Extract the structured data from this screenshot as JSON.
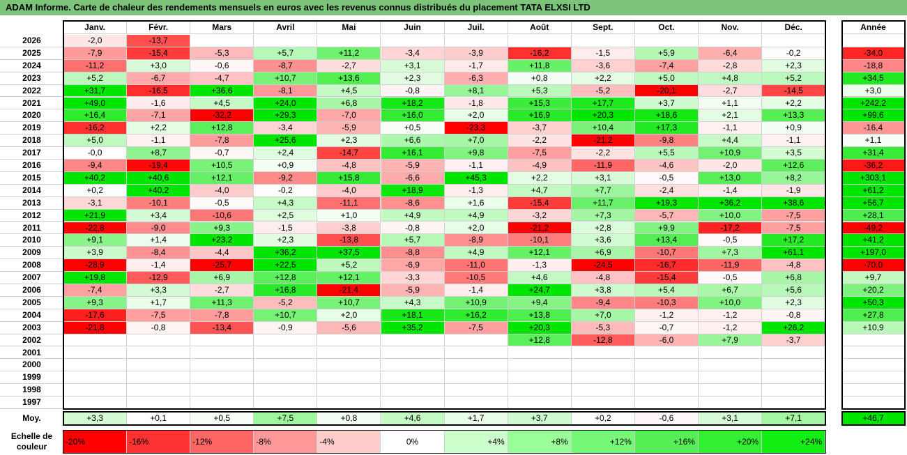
{
  "title": "ADAM Informe. Carte de chaleur des rendements mensuels en euros avec les revenus connus distribués du placement TATA ELXSI LTD",
  "chart_data": {
    "type": "heatmap",
    "columns": [
      "Janv.",
      "Févr.",
      "Mars",
      "Avril",
      "Mai",
      "Juin",
      "Juil.",
      "Août",
      "Sept.",
      "Oct.",
      "Nov.",
      "Déc."
    ],
    "annual_header": "Année",
    "rows": [
      {
        "year": "2026",
        "values": [
          "-2,0",
          "-13,7",
          "",
          "",
          "",
          "",
          "",
          "",
          "",
          "",
          "",
          ""
        ],
        "annual": ""
      },
      {
        "year": "2025",
        "values": [
          "-7,9",
          "-15,4",
          "-5,3",
          "+5,7",
          "+11,2",
          "-3,4",
          "-3,9",
          "-16,2",
          "-1,5",
          "+5,9",
          "-6,4",
          "-0,2"
        ],
        "annual": "-34,0"
      },
      {
        "year": "2024",
        "values": [
          "-11,2",
          "+3,0",
          "-0,6",
          "-8,7",
          "-2,7",
          "+3,1",
          "-1,7",
          "+11,8",
          "-3,6",
          "-7,4",
          "-2,8",
          "+2,3"
        ],
        "annual": "-18,8"
      },
      {
        "year": "2023",
        "values": [
          "+5,2",
          "-6,7",
          "-4,7",
          "+10,7",
          "+13,6",
          "+2,3",
          "-6,3",
          "+0,8",
          "+2,2",
          "+5,0",
          "+4,8",
          "+5,2"
        ],
        "annual": "+34,5"
      },
      {
        "year": "2022",
        "values": [
          "+31,7",
          "-16,5",
          "+36,6",
          "-8,1",
          "+4,5",
          "-0,8",
          "+8,1",
          "+5,3",
          "-5,2",
          "-20,1",
          "-2,7",
          "-14,5"
        ],
        "annual": "+3,0"
      },
      {
        "year": "2021",
        "values": [
          "+49,0",
          "-1,6",
          "+4,5",
          "+24,0",
          "+6,8",
          "+18,2",
          "-1,8",
          "+15,3",
          "+17,7",
          "+3,7",
          "+1,1",
          "+2,2"
        ],
        "annual": "+242,2"
      },
      {
        "year": "2020",
        "values": [
          "+16,4",
          "-7,1",
          "-32,2",
          "+29,3",
          "-7,0",
          "+16,0",
          "+2,0",
          "+16,9",
          "+20,3",
          "+18,6",
          "+2,1",
          "+13,3"
        ],
        "annual": "+99,6"
      },
      {
        "year": "2019",
        "values": [
          "-16,2",
          "+2,2",
          "+12,8",
          "-3,4",
          "-5,9",
          "+0,5",
          "-23,3",
          "-3,7",
          "+10,4",
          "+17,3",
          "-1,1",
          "+0,9"
        ],
        "annual": "-16,4"
      },
      {
        "year": "2018",
        "values": [
          "+5,0",
          "-1,1",
          "-7,8",
          "+25,6",
          "+2,3",
          "+6,6",
          "+7,0",
          "-2,2",
          "-21,2",
          "-9,8",
          "+4,4",
          "-1,1"
        ],
        "annual": "+1,1"
      },
      {
        "year": "2017",
        "values": [
          "-0,0",
          "+8,7",
          "-0,7",
          "+2,4",
          "-14,7",
          "+16,1",
          "+9,8",
          "-7,5",
          "-2,2",
          "+5,5",
          "+10,9",
          "+3,5"
        ],
        "annual": "+31,4"
      },
      {
        "year": "2016",
        "values": [
          "-9,4",
          "-19,4",
          "+10,5",
          "+0,9",
          "-4,8",
          "-5,9",
          "-1,1",
          "-4,9",
          "-11,9",
          "-4,6",
          "-2,0",
          "+12,6"
        ],
        "annual": "-36,2"
      },
      {
        "year": "2015",
        "values": [
          "+40,2",
          "+40,6",
          "+12,1",
          "-9,2",
          "+15,8",
          "-6,6",
          "+45,3",
          "+2,2",
          "+3,1",
          "-0,5",
          "+13,0",
          "+8,2"
        ],
        "annual": "+303,1"
      },
      {
        "year": "2014",
        "values": [
          "+0,2",
          "+40,2",
          "-4,0",
          "-0,2",
          "-4,0",
          "+18,9",
          "-1,3",
          "+4,7",
          "+7,7",
          "-2,4",
          "-1,4",
          "-1,9"
        ],
        "annual": "+61,2"
      },
      {
        "year": "2013",
        "values": [
          "-3,1",
          "-10,1",
          "-0,5",
          "+4,3",
          "-11,1",
          "-8,6",
          "+1,6",
          "-15,4",
          "+11,7",
          "+19,3",
          "+36,2",
          "+38,6"
        ],
        "annual": "+56,7"
      },
      {
        "year": "2012",
        "values": [
          "+21,9",
          "+3,4",
          "-10,6",
          "+2,5",
          "+1,0",
          "+4,9",
          "+4,9",
          "-3,2",
          "+7,3",
          "-5,7",
          "+10,0",
          "-7,5"
        ],
        "annual": "+28,1"
      },
      {
        "year": "2011",
        "values": [
          "-22,8",
          "-9,0",
          "+9,3",
          "-1,5",
          "-3,8",
          "-0,8",
          "+2,0",
          "-21,2",
          "+2,8",
          "+9,9",
          "-17,2",
          "-7,5"
        ],
        "annual": "-49,2"
      },
      {
        "year": "2010",
        "values": [
          "+9,1",
          "+1,4",
          "+23,2",
          "+2,3",
          "-13,8",
          "+5,7",
          "-8,9",
          "-10,1",
          "+3,6",
          "+13,4",
          "-0,5",
          "+17,2"
        ],
        "annual": "+41,2"
      },
      {
        "year": "2009",
        "values": [
          "+3,9",
          "-8,4",
          "-4,4",
          "+36,2",
          "+37,5",
          "-8,8",
          "+4,9",
          "+12,1",
          "+6,9",
          "-10,7",
          "+7,3",
          "+61,1"
        ],
        "annual": "+197,0"
      },
      {
        "year": "2008",
        "values": [
          "-28,9",
          "-1,4",
          "-25,7",
          "+22,5",
          "+5,2",
          "-6,9",
          "-11,0",
          "-1,3",
          "-24,5",
          "-16,7",
          "-11,9",
          "-4,8"
        ],
        "annual": "-70,0"
      },
      {
        "year": "2007",
        "values": [
          "+19,8",
          "-12,9",
          "+6,9",
          "+12,8",
          "+12,1",
          "-3,3",
          "-10,5",
          "+4,6",
          "-4,8",
          "-15,4",
          "-0,5",
          "+6,8"
        ],
        "annual": "+9,7"
      },
      {
        "year": "2006",
        "values": [
          "-7,4",
          "+3,3",
          "-2,7",
          "+16,8",
          "-21,4",
          "-5,9",
          "-1,4",
          "+24,7",
          "+3,8",
          "+5,4",
          "+6,7",
          "+5,6"
        ],
        "annual": "+20,2"
      },
      {
        "year": "2005",
        "values": [
          "+9,3",
          "+1,7",
          "+11,3",
          "-5,2",
          "+10,7",
          "+4,3",
          "+10,9",
          "+9,4",
          "-9,4",
          "-10,3",
          "+10,0",
          "+2,3"
        ],
        "annual": "+50,3"
      },
      {
        "year": "2004",
        "values": [
          "-17,6",
          "-7,5",
          "-7,8",
          "+10,7",
          "+2,0",
          "+18,1",
          "+16,2",
          "+13,8",
          "+7,0",
          "-1,2",
          "-1,2",
          "-0,8"
        ],
        "annual": "+27,8"
      },
      {
        "year": "2003",
        "values": [
          "-21,8",
          "-0,8",
          "-13,4",
          "-0,9",
          "-5,6",
          "+35,2",
          "-7,5",
          "+20,3",
          "-5,3",
          "-0,7",
          "-1,2",
          "+26,2"
        ],
        "annual": "+10,9"
      },
      {
        "year": "2002",
        "values": [
          "",
          "",
          "",
          "",
          "",
          "",
          "",
          "+12,8",
          "-12,8",
          "-6,0",
          "+7,9",
          "-3,7"
        ],
        "annual": ""
      },
      {
        "year": "2001",
        "values": [
          "",
          "",
          "",
          "",
          "",
          "",
          "",
          "",
          "",
          "",
          "",
          ""
        ],
        "annual": ""
      },
      {
        "year": "2000",
        "values": [
          "",
          "",
          "",
          "",
          "",
          "",
          "",
          "",
          "",
          "",
          "",
          ""
        ],
        "annual": ""
      },
      {
        "year": "1999",
        "values": [
          "",
          "",
          "",
          "",
          "",
          "",
          "",
          "",
          "",
          "",
          "",
          ""
        ],
        "annual": ""
      },
      {
        "year": "1998",
        "values": [
          "",
          "",
          "",
          "",
          "",
          "",
          "",
          "",
          "",
          "",
          "",
          ""
        ],
        "annual": ""
      },
      {
        "year": "1997",
        "values": [
          "",
          "",
          "",
          "",
          "",
          "",
          "",
          "",
          "",
          "",
          "",
          ""
        ],
        "annual": ""
      }
    ],
    "average": {
      "label": "Moy.",
      "values": [
        "+3,3",
        "+0,1",
        "+0,5",
        "+7,5",
        "+0,8",
        "+4,6",
        "+1,7",
        "+3,7",
        "+0,2",
        "-0,6",
        "+3,1",
        "+7,1"
      ],
      "annual": "+46,7"
    },
    "color_scale": {
      "label_line1": "Echelle de",
      "label_line2": "couleur",
      "stops": [
        {
          "label": "-20%",
          "value": -20,
          "color": "#ff0000"
        },
        {
          "label": "-16%",
          "value": -16,
          "color": "#ff3333"
        },
        {
          "label": "-12%",
          "value": -12,
          "color": "#ff6666"
        },
        {
          "label": "-8%",
          "value": -8,
          "color": "#ff9999"
        },
        {
          "label": "-4%",
          "value": -4,
          "color": "#ffcccc"
        },
        {
          "label": "0%",
          "value": 0,
          "color": "#ffffff"
        },
        {
          "label": "+4%",
          "value": 4,
          "color": "#ccffcc"
        },
        {
          "label": "+8%",
          "value": 8,
          "color": "#99ff99"
        },
        {
          "label": "+12%",
          "value": 12,
          "color": "#77f777"
        },
        {
          "label": "+16%",
          "value": 16,
          "color": "#55ee55"
        },
        {
          "label": "+20%",
          "value": 20,
          "color": "#33ee33"
        },
        {
          "label": "+24%",
          "value": 24,
          "color": "#11ee11"
        }
      ]
    },
    "colors": {
      "title_bar": "#7bc47a",
      "negative_max": "#ff0000",
      "positive_max": "#00e600"
    }
  }
}
